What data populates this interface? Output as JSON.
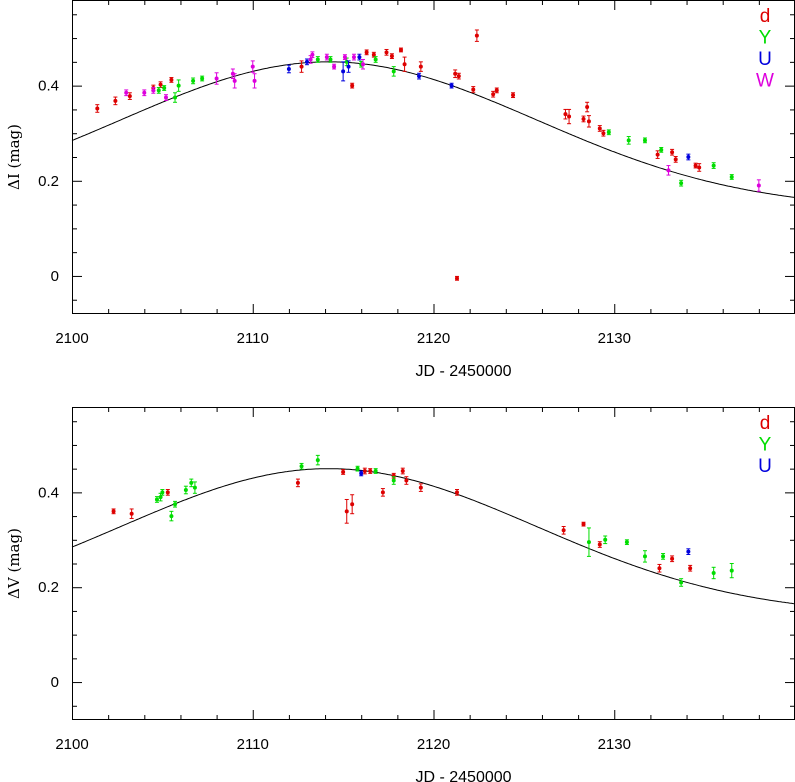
{
  "chart_data": [
    {
      "type": "scatter",
      "xlabel": "JD - 2450000",
      "ylabel": "ΔI (mag)",
      "xlim": [
        2100,
        2140
      ],
      "ylim": [
        -0.08,
        0.58
      ],
      "xticks": [
        2100,
        2110,
        2120,
        2130
      ],
      "yticks": [
        0,
        0.2,
        0.4
      ],
      "x_tick_labels": [
        "2100",
        "2110",
        "2120",
        "2130"
      ],
      "y_tick_labels": [
        "0",
        "0.2",
        "0.4"
      ],
      "legend_placement": "top-right",
      "grid": false,
      "model_curve": {
        "peak_x": 2114.2,
        "peak_y": 0.45,
        "width": 11.5,
        "baseline": 0.14
      },
      "series": [
        {
          "name": "d",
          "color": "#dd0000",
          "points": [
            [
              2101.4,
              0.352,
              0.008
            ],
            [
              2102.4,
              0.368,
              0.008
            ],
            [
              2103.2,
              0.378,
              0.007
            ],
            [
              2104.5,
              0.395,
              0.006
            ],
            [
              2104.9,
              0.402,
              0.006
            ],
            [
              2105.5,
              0.412,
              0.005
            ],
            [
              2112.7,
              0.44,
              0.012
            ],
            [
              2115.5,
              0.4,
              0.005
            ],
            [
              2116.3,
              0.47,
              0.005
            ],
            [
              2116.7,
              0.465,
              0.005
            ],
            [
              2117.4,
              0.47,
              0.006
            ],
            [
              2117.7,
              0.462,
              0.005
            ],
            [
              2118.2,
              0.475,
              0.004
            ],
            [
              2118.4,
              0.445,
              0.015
            ],
            [
              2119.3,
              0.44,
              0.01
            ],
            [
              2121.2,
              0.425,
              0.008
            ],
            [
              2121.4,
              0.42,
              0.006
            ],
            [
              2121.3,
              -0.005,
              0.004
            ],
            [
              2122.2,
              0.392,
              0.006
            ],
            [
              2122.4,
              0.505,
              0.012
            ],
            [
              2123.3,
              0.382,
              0.006
            ],
            [
              2123.5,
              0.39,
              0.005
            ],
            [
              2124.4,
              0.38,
              0.005
            ],
            [
              2127.3,
              0.34,
              0.01
            ],
            [
              2127.5,
              0.335,
              0.015
            ],
            [
              2128.3,
              0.33,
              0.006
            ],
            [
              2128.5,
              0.355,
              0.01
            ],
            [
              2128.6,
              0.325,
              0.012
            ],
            [
              2129.2,
              0.31,
              0.006
            ],
            [
              2129.4,
              0.3,
              0.006
            ],
            [
              2132.4,
              0.255,
              0.008
            ],
            [
              2133.2,
              0.26,
              0.006
            ],
            [
              2133.4,
              0.245,
              0.006
            ],
            [
              2134.5,
              0.232,
              0.005
            ],
            [
              2134.7,
              0.228,
              0.008
            ]
          ]
        },
        {
          "name": "Y",
          "color": "#00dd00",
          "points": [
            [
              2104.8,
              0.39,
              0.006
            ],
            [
              2105.1,
              0.395,
              0.005
            ],
            [
              2105.7,
              0.375,
              0.01
            ],
            [
              2105.9,
              0.4,
              0.012
            ],
            [
              2106.7,
              0.41,
              0.006
            ],
            [
              2107.2,
              0.415,
              0.005
            ],
            [
              2113.6,
              0.455,
              0.006
            ],
            [
              2114.3,
              0.455,
              0.006
            ],
            [
              2115.2,
              0.45,
              0.008
            ],
            [
              2116.0,
              0.445,
              0.006
            ],
            [
              2116.8,
              0.455,
              0.006
            ],
            [
              2117.8,
              0.43,
              0.01
            ],
            [
              2129.7,
              0.302,
              0.005
            ],
            [
              2130.8,
              0.285,
              0.008
            ],
            [
              2131.7,
              0.285,
              0.005
            ],
            [
              2132.6,
              0.265,
              0.005
            ],
            [
              2133.7,
              0.195,
              0.006
            ],
            [
              2135.5,
              0.232,
              0.006
            ],
            [
              2136.5,
              0.208,
              0.005
            ]
          ]
        },
        {
          "name": "U",
          "color": "#0000dd",
          "points": [
            [
              2112.0,
              0.435,
              0.008
            ],
            [
              2113.0,
              0.45,
              0.006
            ],
            [
              2115.0,
              0.43,
              0.02
            ],
            [
              2115.3,
              0.44,
              0.012
            ],
            [
              2115.9,
              0.46,
              0.006
            ],
            [
              2119.2,
              0.42,
              0.006
            ],
            [
              2121.0,
              0.4,
              0.005
            ],
            [
              2134.1,
              0.25,
              0.006
            ]
          ]
        },
        {
          "name": "W",
          "color": "#dd00dd",
          "points": [
            [
              2103.0,
              0.385,
              0.006
            ],
            [
              2104.0,
              0.385,
              0.006
            ],
            [
              2104.5,
              0.39,
              0.006
            ],
            [
              2105.2,
              0.375,
              0.006
            ],
            [
              2108.0,
              0.415,
              0.012
            ],
            [
              2108.9,
              0.425,
              0.01
            ],
            [
              2109.0,
              0.41,
              0.015
            ],
            [
              2110.0,
              0.44,
              0.012
            ],
            [
              2110.1,
              0.41,
              0.015
            ],
            [
              2113.2,
              0.455,
              0.008
            ],
            [
              2113.3,
              0.465,
              0.006
            ],
            [
              2114.1,
              0.46,
              0.006
            ],
            [
              2114.5,
              0.44,
              0.005
            ],
            [
              2115.1,
              0.46,
              0.005
            ],
            [
              2115.6,
              0.46,
              0.006
            ],
            [
              2116.1,
              0.445,
              0.01
            ],
            [
              2133.0,
              0.222,
              0.01
            ],
            [
              2138.0,
              0.19,
              0.012
            ]
          ]
        }
      ]
    },
    {
      "type": "scatter",
      "xlabel": "JD - 2450000",
      "ylabel": "ΔV (mag)",
      "xlim": [
        2100,
        2140
      ],
      "ylim": [
        -0.08,
        0.58
      ],
      "xticks": [
        2100,
        2110,
        2120,
        2130
      ],
      "yticks": [
        0,
        0.2,
        0.4
      ],
      "x_tick_labels": [
        "2100",
        "2110",
        "2120",
        "2130"
      ],
      "y_tick_labels": [
        "0",
        "0.2",
        "0.4"
      ],
      "legend_placement": "top-right",
      "grid": false,
      "model_curve": {
        "peak_x": 2114.2,
        "peak_y": 0.45,
        "width": 11.5,
        "baseline": 0.14
      },
      "series": [
        {
          "name": "d",
          "color": "#dd0000",
          "points": [
            [
              2102.3,
              0.36,
              0.005
            ],
            [
              2103.3,
              0.355,
              0.01
            ],
            [
              2105.3,
              0.4,
              0.006
            ],
            [
              2112.5,
              0.42,
              0.008
            ],
            [
              2115.0,
              0.443,
              0.005
            ],
            [
              2115.2,
              0.36,
              0.025
            ],
            [
              2115.5,
              0.375,
              0.02
            ],
            [
              2116.2,
              0.445,
              0.006
            ],
            [
              2116.5,
              0.445,
              0.005
            ],
            [
              2117.2,
              0.4,
              0.008
            ],
            [
              2117.8,
              0.435,
              0.005
            ],
            [
              2118.3,
              0.445,
              0.006
            ],
            [
              2118.5,
              0.425,
              0.008
            ],
            [
              2119.3,
              0.41,
              0.008
            ],
            [
              2121.3,
              0.4,
              0.006
            ],
            [
              2127.2,
              0.32,
              0.008
            ],
            [
              2128.3,
              0.333,
              0.004
            ],
            [
              2129.2,
              0.29,
              0.006
            ],
            [
              2132.5,
              0.24,
              0.008
            ],
            [
              2133.2,
              0.26,
              0.006
            ],
            [
              2134.2,
              0.24,
              0.006
            ]
          ]
        },
        {
          "name": "Y",
          "color": "#00dd00",
          "points": [
            [
              2104.7,
              0.385,
              0.006
            ],
            [
              2104.9,
              0.39,
              0.008
            ],
            [
              2105.0,
              0.4,
              0.006
            ],
            [
              2105.5,
              0.35,
              0.01
            ],
            [
              2105.7,
              0.375,
              0.006
            ],
            [
              2106.3,
              0.405,
              0.008
            ],
            [
              2106.6,
              0.42,
              0.008
            ],
            [
              2106.8,
              0.41,
              0.012
            ],
            [
              2112.7,
              0.455,
              0.006
            ],
            [
              2113.6,
              0.468,
              0.01
            ],
            [
              2115.8,
              0.45,
              0.005
            ],
            [
              2116.8,
              0.445,
              0.005
            ],
            [
              2117.8,
              0.425,
              0.008
            ],
            [
              2128.6,
              0.295,
              0.03
            ],
            [
              2129.5,
              0.3,
              0.008
            ],
            [
              2130.7,
              0.295,
              0.005
            ],
            [
              2131.7,
              0.265,
              0.012
            ],
            [
              2132.7,
              0.265,
              0.006
            ],
            [
              2133.7,
              0.21,
              0.008
            ],
            [
              2135.5,
              0.23,
              0.012
            ],
            [
              2136.5,
              0.235,
              0.015
            ]
          ]
        },
        {
          "name": "U",
          "color": "#0000dd",
          "points": [
            [
              2116.0,
              0.44,
              0.005
            ],
            [
              2134.1,
              0.275,
              0.006
            ]
          ]
        }
      ]
    }
  ]
}
